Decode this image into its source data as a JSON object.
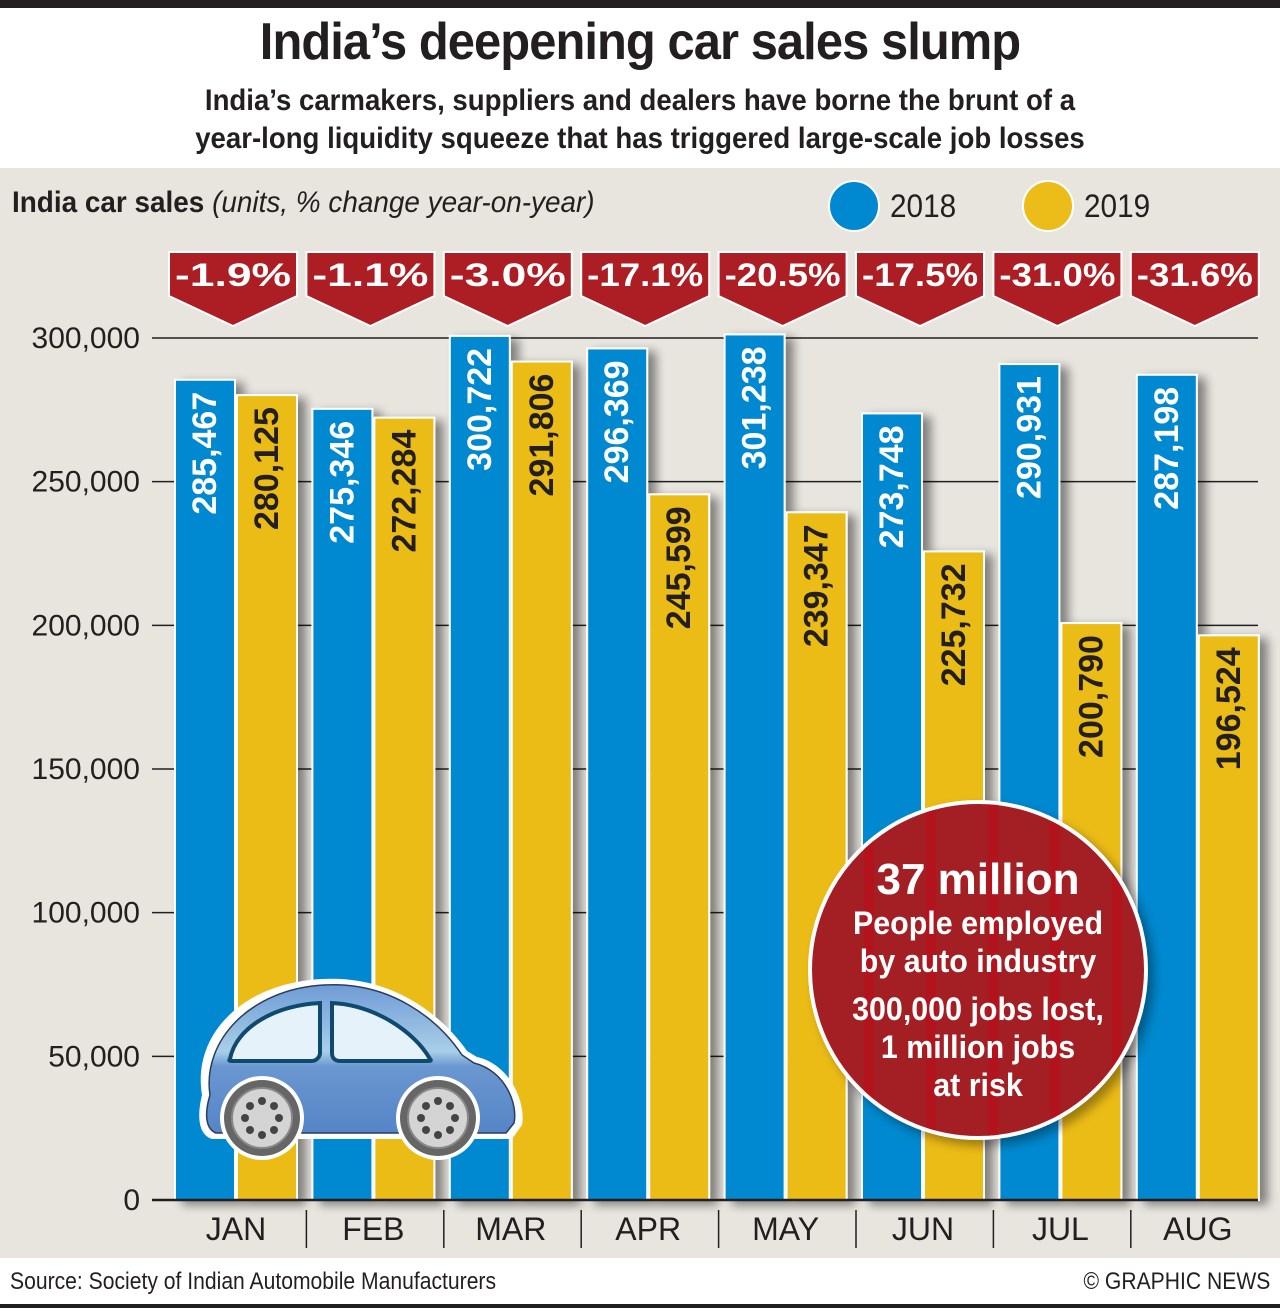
{
  "header": {
    "title": "India’s deepening car sales slump",
    "subtitle_line1": "India’s carmakers, suppliers and dealers have borne the brunt of a",
    "subtitle_line2": "year-long liquidity squeeze that has triggered large-scale job losses"
  },
  "chart_label": {
    "bold": "India car sales",
    "italic": "(units, % change year-on-year)"
  },
  "legend": [
    {
      "label": "2018",
      "color": "#0089d0"
    },
    {
      "label": "2019",
      "color": "#ecbc18"
    }
  ],
  "callout": {
    "headline": "37 million",
    "line1": "People employed",
    "line2": "by auto industry",
    "line3": "300,000 jobs lost,",
    "line4": "1 million jobs",
    "line5": "at risk",
    "color": "#a31f24"
  },
  "footer": {
    "source": "Source: Society of Indian Automobile Manufacturers",
    "credit": "© GRAPHIC NEWS"
  },
  "chart_data": {
    "type": "bar",
    "title": "India car sales",
    "subtitle": "(units, % change year-on-year)",
    "categories": [
      "JAN",
      "FEB",
      "MAR",
      "APR",
      "MAY",
      "JUN",
      "JUL",
      "AUG"
    ],
    "series": [
      {
        "name": "2018",
        "color": "#0089d0",
        "label_color": "#ffffff",
        "values": [
          285467,
          275346,
          300722,
          296369,
          301238,
          273748,
          290931,
          287198
        ],
        "labels": [
          "285,467",
          "275,346",
          "300,722",
          "296,369",
          "301,238",
          "273,748",
          "290,931",
          "287,198"
        ]
      },
      {
        "name": "2019",
        "color": "#ecbc18",
        "label_color": "#231f20",
        "values": [
          280125,
          272284,
          291806,
          245599,
          239347,
          225732,
          200790,
          196524
        ],
        "labels": [
          "280,125",
          "272,284",
          "291,806",
          "245,599",
          "239,347",
          "225,732",
          "200,790",
          "196,524"
        ]
      }
    ],
    "pct_change": [
      "-1.9%",
      "-1.1%",
      "-3.0%",
      "-17.1%",
      "-20.5%",
      "-17.5%",
      "-31.0%",
      "-31.6%"
    ],
    "pct_change_color": "#ac1e23",
    "yticks": [
      0,
      50000,
      100000,
      150000,
      200000,
      250000,
      300000
    ],
    "ytick_labels": [
      "0",
      "50,000",
      "100,000",
      "150,000",
      "200,000",
      "250,000",
      "300,000"
    ],
    "ylim": [
      0,
      300000
    ],
    "xlabel": "",
    "ylabel": "",
    "grid": true,
    "legend_position": "top-right"
  }
}
